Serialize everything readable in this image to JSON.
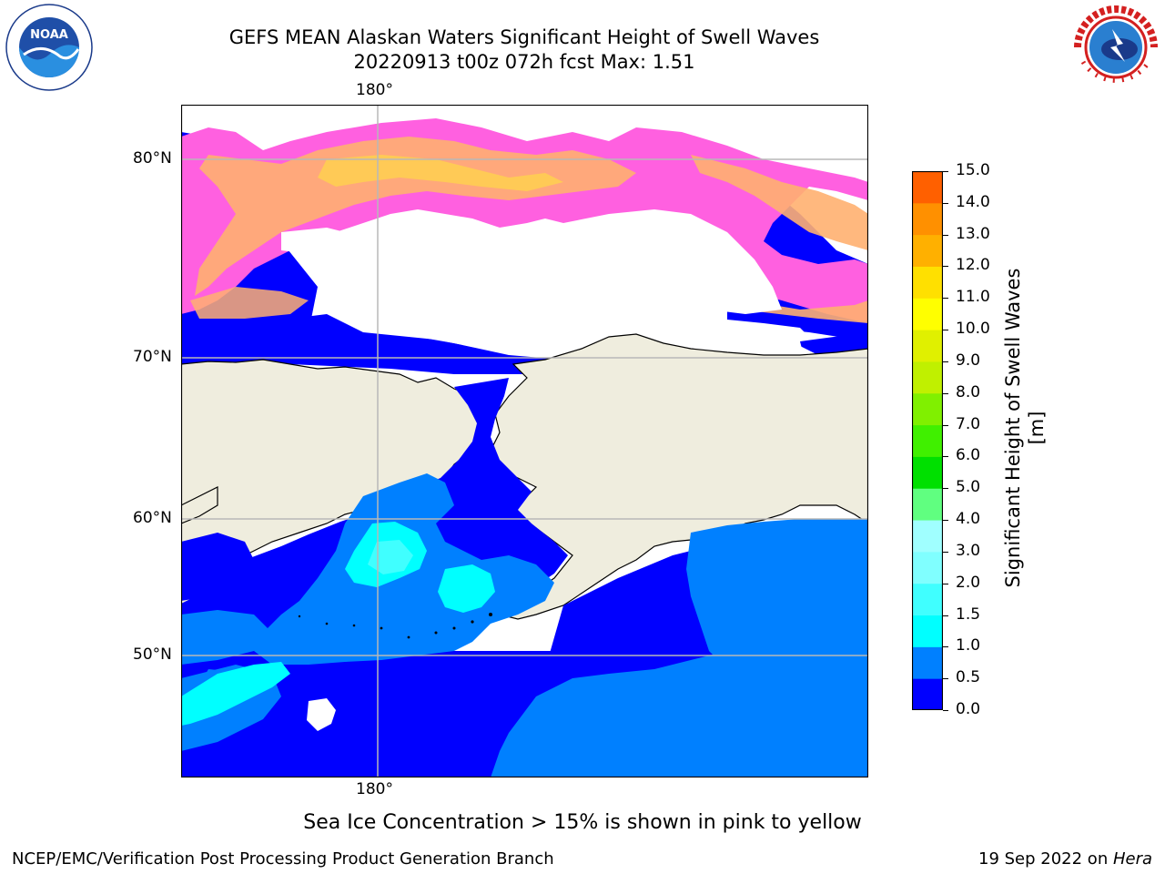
{
  "header": {
    "title_line1": "GEFS MEAN Alaskan Waters Significant Height of Swell Waves",
    "title_line2": "20220913 t00z 072h fcst   Max: 1.51"
  },
  "logos": {
    "noaa_text": "NOAA",
    "noaa_ring": "NATIONAL OCEANIC AND ATMOSPHERIC ADMINISTRATION · U.S. DEPARTMENT OF COMMERCE ·",
    "nws_ring": "NATIONAL WEATHER SERVICE"
  },
  "map": {
    "lon_label_top": "180°",
    "lon_label_bottom": "180°",
    "lat_labels": [
      "80°N",
      "70°N",
      "60°N",
      "50°N"
    ],
    "colors": {
      "land": "#efedde",
      "ice_free": "#ffffff",
      "swell_0_0.5": "#0000ff",
      "swell_0.5_1.0": "#0080ff",
      "swell_1.0_1.5": "#00ffff",
      "swell_1.5_2.0": "#40ffff",
      "ice_pink": "#ff60e0",
      "ice_orange": "#ffb070",
      "ice_yellow": "#ffd050",
      "grid": "#b8b8b8"
    }
  },
  "colorbar": {
    "label": "Significant Height of Swell Waves [m]",
    "ticks": [
      "15.0",
      "14.0",
      "13.0",
      "12.0",
      "11.0",
      "10.0",
      "9.0",
      "8.0",
      "7.0",
      "6.0",
      "5.0",
      "4.0",
      "3.0",
      "2.0",
      "1.5",
      "1.0",
      "0.5",
      "0.0"
    ],
    "colors_bottom_to_top": [
      "#0000ff",
      "#0080ff",
      "#00ffff",
      "#40ffff",
      "#80ffff",
      "#a0ffff",
      "#60ff80",
      "#00e000",
      "#40f000",
      "#80f000",
      "#c0f000",
      "#e0f000",
      "#ffff00",
      "#ffe000",
      "#ffb000",
      "#ff9000",
      "#ff6000",
      "#ff3000",
      "#ff0000"
    ]
  },
  "caption": "Sea Ice Concentration > 15% is shown in pink to yellow",
  "footer": {
    "left": "NCEP/EMC/Verification Post Processing Product Generation Branch",
    "right_date": "19 Sep 2022 on ",
    "right_machine": "Hera"
  }
}
